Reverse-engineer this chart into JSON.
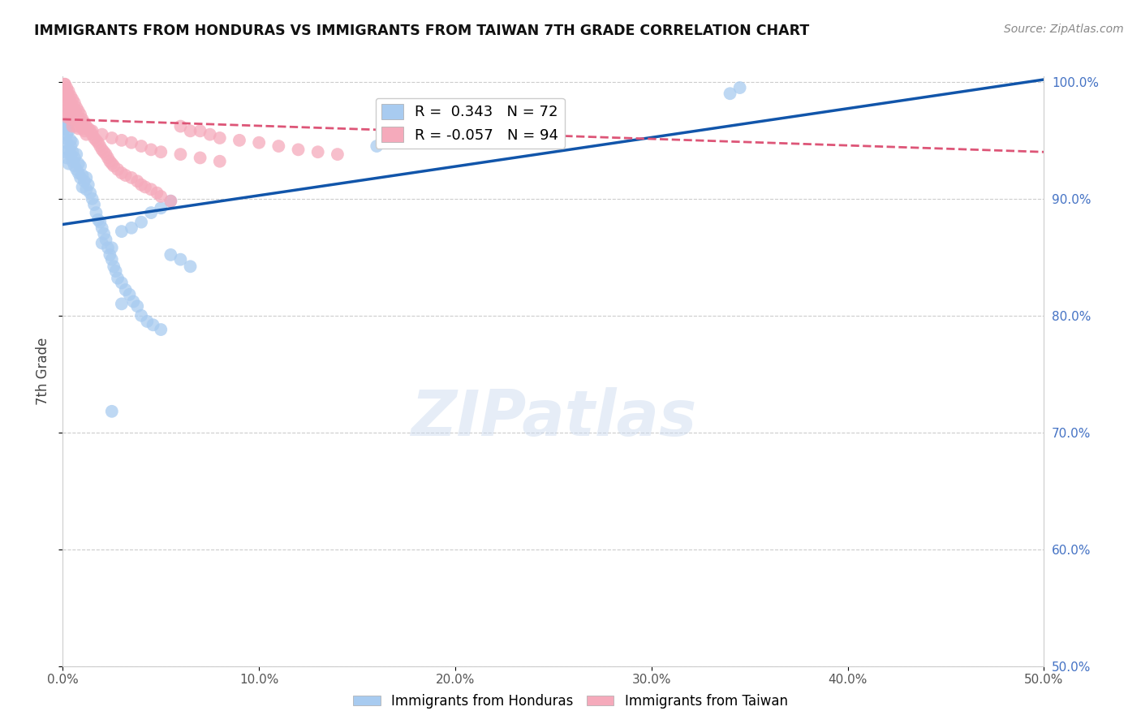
{
  "title": "IMMIGRANTS FROM HONDURAS VS IMMIGRANTS FROM TAIWAN 7TH GRADE CORRELATION CHART",
  "source": "Source: ZipAtlas.com",
  "ylabel": "7th Grade",
  "x_range": [
    0.0,
    0.5
  ],
  "y_range": [
    0.5,
    1.005
  ],
  "legend_r_blue": "0.343",
  "legend_n_blue": "72",
  "legend_r_pink": "-0.057",
  "legend_n_pink": "94",
  "label_honduras": "Immigrants from Honduras",
  "label_taiwan": "Immigrants from Taiwan",
  "blue_color": "#A8CBF0",
  "pink_color": "#F5AABB",
  "line_blue_color": "#1155AA",
  "line_pink_color": "#DD5577",
  "watermark_text": "ZIPatlas",
  "blue_line_x0": 0.0,
  "blue_line_y0": 0.878,
  "blue_line_x1": 0.5,
  "blue_line_y1": 1.002,
  "pink_line_x0": 0.0,
  "pink_line_y0": 0.968,
  "pink_line_x1": 0.5,
  "pink_line_y1": 0.94,
  "blue_scatter_x": [
    0.001,
    0.001,
    0.001,
    0.002,
    0.002,
    0.002,
    0.002,
    0.003,
    0.003,
    0.003,
    0.003,
    0.004,
    0.004,
    0.004,
    0.005,
    0.005,
    0.005,
    0.006,
    0.006,
    0.007,
    0.007,
    0.008,
    0.008,
    0.009,
    0.009,
    0.01,
    0.01,
    0.011,
    0.012,
    0.012,
    0.013,
    0.014,
    0.015,
    0.016,
    0.017,
    0.018,
    0.019,
    0.02,
    0.021,
    0.022,
    0.023,
    0.024,
    0.025,
    0.026,
    0.027,
    0.028,
    0.03,
    0.032,
    0.034,
    0.036,
    0.038,
    0.04,
    0.043,
    0.046,
    0.05,
    0.055,
    0.06,
    0.065,
    0.02,
    0.025,
    0.03,
    0.035,
    0.04,
    0.045,
    0.05,
    0.055,
    0.16,
    0.165,
    0.34,
    0.345,
    0.025,
    0.03
  ],
  "blue_scatter_y": [
    0.952,
    0.94,
    0.96,
    0.948,
    0.935,
    0.955,
    0.962,
    0.942,
    0.93,
    0.958,
    0.965,
    0.945,
    0.938,
    0.95,
    0.94,
    0.932,
    0.948,
    0.935,
    0.928,
    0.938,
    0.925,
    0.93,
    0.922,
    0.928,
    0.918,
    0.92,
    0.91,
    0.915,
    0.908,
    0.918,
    0.912,
    0.905,
    0.9,
    0.895,
    0.888,
    0.882,
    0.88,
    0.875,
    0.87,
    0.865,
    0.858,
    0.852,
    0.848,
    0.842,
    0.838,
    0.832,
    0.828,
    0.822,
    0.818,
    0.812,
    0.808,
    0.8,
    0.795,
    0.792,
    0.788,
    0.852,
    0.848,
    0.842,
    0.862,
    0.858,
    0.872,
    0.875,
    0.88,
    0.888,
    0.892,
    0.898,
    0.945,
    0.948,
    0.99,
    0.995,
    0.718,
    0.81
  ],
  "pink_scatter_x": [
    0.001,
    0.001,
    0.001,
    0.002,
    0.002,
    0.002,
    0.002,
    0.002,
    0.003,
    0.003,
    0.003,
    0.003,
    0.004,
    0.004,
    0.004,
    0.004,
    0.005,
    0.005,
    0.005,
    0.005,
    0.006,
    0.006,
    0.006,
    0.007,
    0.007,
    0.007,
    0.008,
    0.008,
    0.008,
    0.009,
    0.009,
    0.01,
    0.01,
    0.011,
    0.011,
    0.012,
    0.012,
    0.013,
    0.014,
    0.015,
    0.016,
    0.017,
    0.018,
    0.019,
    0.02,
    0.021,
    0.022,
    0.023,
    0.024,
    0.025,
    0.026,
    0.028,
    0.03,
    0.032,
    0.035,
    0.038,
    0.04,
    0.042,
    0.045,
    0.048,
    0.05,
    0.055,
    0.06,
    0.065,
    0.07,
    0.075,
    0.08,
    0.09,
    0.1,
    0.11,
    0.12,
    0.13,
    0.14,
    0.001,
    0.002,
    0.003,
    0.004,
    0.005,
    0.006,
    0.007,
    0.008,
    0.009,
    0.01,
    0.015,
    0.02,
    0.025,
    0.03,
    0.035,
    0.04,
    0.045,
    0.05,
    0.06,
    0.07,
    0.08
  ],
  "pink_scatter_y": [
    0.998,
    0.992,
    0.985,
    0.995,
    0.988,
    0.98,
    0.975,
    0.97,
    0.992,
    0.985,
    0.978,
    0.972,
    0.988,
    0.982,
    0.975,
    0.968,
    0.985,
    0.978,
    0.97,
    0.962,
    0.982,
    0.975,
    0.968,
    0.978,
    0.97,
    0.962,
    0.975,
    0.968,
    0.96,
    0.972,
    0.965,
    0.968,
    0.96,
    0.965,
    0.958,
    0.962,
    0.955,
    0.96,
    0.958,
    0.955,
    0.952,
    0.95,
    0.948,
    0.945,
    0.942,
    0.94,
    0.938,
    0.935,
    0.932,
    0.93,
    0.928,
    0.925,
    0.922,
    0.92,
    0.918,
    0.915,
    0.912,
    0.91,
    0.908,
    0.905,
    0.902,
    0.898,
    0.962,
    0.958,
    0.958,
    0.955,
    0.952,
    0.95,
    0.948,
    0.945,
    0.942,
    0.94,
    0.938,
    0.998,
    0.992,
    0.988,
    0.982,
    0.978,
    0.975,
    0.972,
    0.968,
    0.965,
    0.962,
    0.958,
    0.955,
    0.952,
    0.95,
    0.948,
    0.945,
    0.942,
    0.94,
    0.938,
    0.935,
    0.932
  ]
}
